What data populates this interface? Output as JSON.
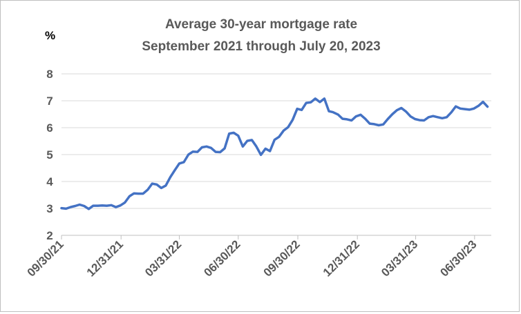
{
  "chart_data": {
    "type": "line",
    "title": "Average 30-year mortgage rate",
    "subtitle": "September 2021 through July 20, 2023",
    "ylabel": "%",
    "xlabel": "",
    "ylim": [
      2,
      8
    ],
    "yticks": [
      "2",
      "3",
      "4",
      "5",
      "6",
      "7",
      "8"
    ],
    "grid": true,
    "legend": "none",
    "x_ticks": [
      "09/30/21",
      "12/31/21",
      "03/31/22",
      "06/30/22",
      "09/30/22",
      "12/31/22",
      "03/31/23",
      "06/30/23"
    ],
    "series": [
      {
        "color": "#4472c4",
        "x": [
          "2021-09-30",
          "2021-10-07",
          "2021-10-14",
          "2021-10-21",
          "2021-10-28",
          "2021-11-04",
          "2021-11-11",
          "2021-11-18",
          "2021-11-25",
          "2021-12-02",
          "2021-12-09",
          "2021-12-16",
          "2021-12-23",
          "2021-12-30",
          "2022-01-06",
          "2022-01-13",
          "2022-01-20",
          "2022-01-27",
          "2022-02-03",
          "2022-02-10",
          "2022-02-17",
          "2022-02-24",
          "2022-03-03",
          "2022-03-10",
          "2022-03-17",
          "2022-03-24",
          "2022-03-31",
          "2022-04-07",
          "2022-04-14",
          "2022-04-21",
          "2022-04-28",
          "2022-05-05",
          "2022-05-12",
          "2022-05-19",
          "2022-05-26",
          "2022-06-02",
          "2022-06-09",
          "2022-06-16",
          "2022-06-23",
          "2022-06-30",
          "2022-07-07",
          "2022-07-14",
          "2022-07-21",
          "2022-07-28",
          "2022-08-04",
          "2022-08-11",
          "2022-08-18",
          "2022-08-25",
          "2022-09-01",
          "2022-09-08",
          "2022-09-15",
          "2022-09-22",
          "2022-09-29",
          "2022-10-06",
          "2022-10-13",
          "2022-10-20",
          "2022-10-27",
          "2022-11-03",
          "2022-11-10",
          "2022-11-17",
          "2022-11-23",
          "2022-12-01",
          "2022-12-08",
          "2022-12-15",
          "2022-12-22",
          "2022-12-29",
          "2023-01-05",
          "2023-01-12",
          "2023-01-19",
          "2023-01-26",
          "2023-02-02",
          "2023-02-09",
          "2023-02-16",
          "2023-02-23",
          "2023-03-02",
          "2023-03-09",
          "2023-03-16",
          "2023-03-23",
          "2023-03-30",
          "2023-04-06",
          "2023-04-13",
          "2023-04-20",
          "2023-04-27",
          "2023-05-04",
          "2023-05-11",
          "2023-05-18",
          "2023-05-25",
          "2023-06-01",
          "2023-06-08",
          "2023-06-15",
          "2023-06-22",
          "2023-06-29",
          "2023-07-06",
          "2023-07-13",
          "2023-07-20"
        ],
        "y": [
          3.01,
          2.99,
          3.05,
          3.09,
          3.14,
          3.09,
          2.98,
          3.1,
          3.1,
          3.11,
          3.1,
          3.12,
          3.05,
          3.11,
          3.22,
          3.45,
          3.56,
          3.55,
          3.55,
          3.69,
          3.92,
          3.89,
          3.76,
          3.85,
          4.16,
          4.42,
          4.67,
          4.72,
          5.0,
          5.11,
          5.1,
          5.27,
          5.3,
          5.25,
          5.1,
          5.09,
          5.23,
          5.78,
          5.81,
          5.7,
          5.3,
          5.51,
          5.54,
          5.3,
          4.99,
          5.22,
          5.13,
          5.55,
          5.66,
          5.89,
          6.02,
          6.29,
          6.7,
          6.66,
          6.92,
          6.94,
          7.08,
          6.95,
          7.08,
          6.61,
          6.58,
          6.49,
          6.33,
          6.31,
          6.27,
          6.42,
          6.48,
          6.33,
          6.15,
          6.13,
          6.09,
          6.12,
          6.32,
          6.5,
          6.65,
          6.73,
          6.6,
          6.42,
          6.32,
          6.28,
          6.27,
          6.39,
          6.43,
          6.39,
          6.35,
          6.39,
          6.57,
          6.79,
          6.71,
          6.69,
          6.67,
          6.71,
          6.81,
          6.96,
          6.78
        ]
      }
    ]
  }
}
